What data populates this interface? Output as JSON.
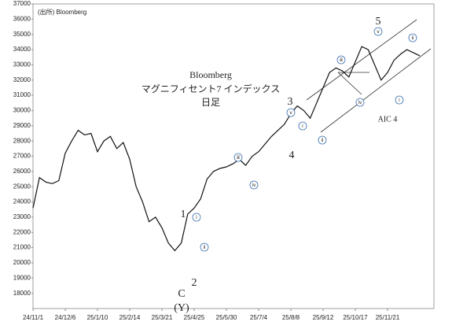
{
  "chart_data": {
    "type": "line",
    "source": "(出所) Bloomberg",
    "title_lines": [
      "Bloomberg",
      "マグニフィセント7 インデックス",
      "日足"
    ],
    "categories": [
      "24/11/1",
      null,
      null,
      null,
      null,
      "24/12/6",
      null,
      null,
      null,
      null,
      "25/1/10",
      null,
      null,
      null,
      null,
      "25/2/14",
      null,
      null,
      null,
      null,
      "25/3/21",
      null,
      null,
      null,
      null,
      "25/4/25",
      null,
      null,
      null,
      null,
      "25/5/30",
      null,
      null,
      null,
      null,
      "25/7/4",
      null,
      null,
      null,
      null,
      "25/8/8",
      null,
      null,
      null,
      null,
      "25/9/12",
      null,
      null,
      null,
      null,
      "25/10/17",
      null,
      null,
      null,
      null,
      "25/11/21",
      null,
      null,
      null,
      null,
      null
    ],
    "values": [
      23600,
      25600,
      25300,
      25200,
      25400,
      27200,
      28000,
      28700,
      28400,
      28500,
      27300,
      28000,
      28300,
      27500,
      27900,
      26800,
      25000,
      24000,
      22700,
      23000,
      22300,
      21300,
      20800,
      21300,
      23200,
      23600,
      24200,
      25500,
      26000,
      26200,
      26300,
      26500,
      26800,
      26400,
      27000,
      27300,
      27800,
      28300,
      28700,
      29100,
      29800,
      30300,
      30000,
      29500,
      30500,
      31500,
      32500,
      32800,
      32600,
      32200,
      33200,
      34200,
      34000,
      33000,
      32000,
      32500,
      33300,
      33700,
      34000,
      33800,
      33600
    ],
    "color": "#111111",
    "ylim": [
      17000,
      37000
    ],
    "yticks": [
      18000,
      19000,
      20000,
      21000,
      22000,
      23000,
      24000,
      25000,
      26000,
      27000,
      28000,
      29000,
      30000,
      31000,
      32000,
      33000,
      34000,
      35000,
      36000,
      37000
    ],
    "grid": false,
    "annotations": [
      "1",
      "2",
      "C",
      "(Y)",
      "3",
      "4",
      "5",
      "AIC 4"
    ],
    "circled": [
      "ⅰ",
      "ⅱ",
      "ⅲ",
      "ⅳ",
      "ⅴ",
      "ⅰ",
      "ⅱ",
      "ⅲ",
      "ⅳ",
      "ⅴ",
      "ⅰ",
      "ⅱ"
    ]
  }
}
